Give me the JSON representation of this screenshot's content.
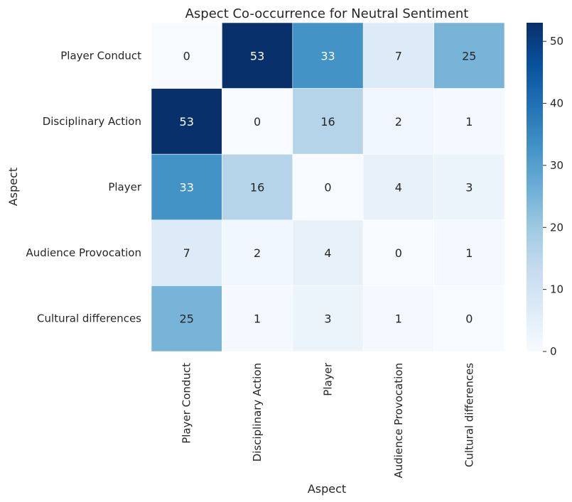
{
  "chart_data": {
    "type": "heatmap",
    "title": "Aspect Co-occurrence for Neutral Sentiment",
    "xlabel": "Aspect",
    "ylabel": "Aspect",
    "x_categories": [
      "Player Conduct",
      "Disciplinary Action",
      "Player",
      "Audience Provocation",
      "Cultural differences"
    ],
    "y_categories": [
      "Player Conduct",
      "Disciplinary Action",
      "Player",
      "Audience Provocation",
      "Cultural differences"
    ],
    "values": [
      [
        0,
        53,
        33,
        7,
        25
      ],
      [
        53,
        0,
        16,
        2,
        1
      ],
      [
        33,
        16,
        0,
        4,
        3
      ],
      [
        7,
        2,
        4,
        0,
        1
      ],
      [
        25,
        1,
        3,
        1,
        0
      ]
    ],
    "colormap": "Blues",
    "color_range": [
      0,
      53
    ],
    "colorbar_ticks": [
      0,
      10,
      20,
      30,
      40,
      50
    ],
    "annotations": true,
    "grid": false
  }
}
